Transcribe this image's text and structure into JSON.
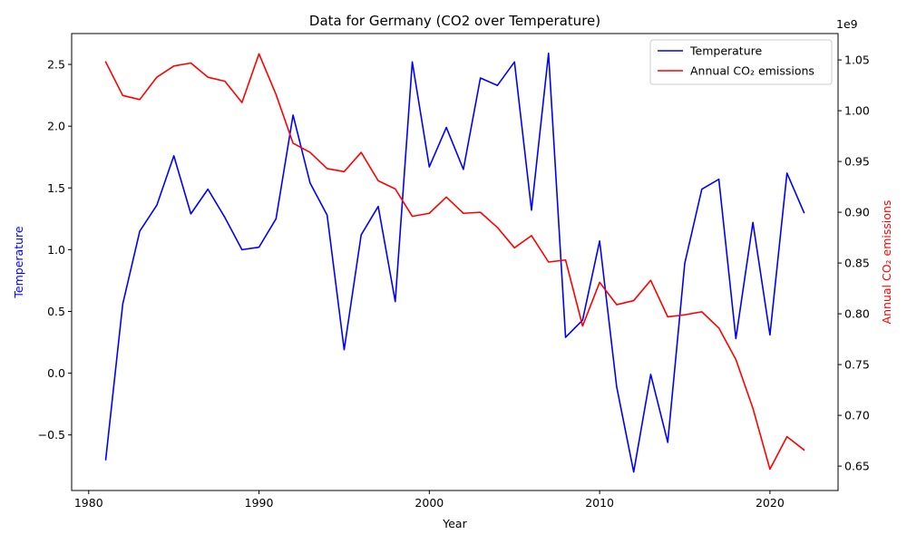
{
  "chart_data": {
    "type": "line",
    "title": "Data for Germany (CO2 over Temperature)",
    "xlabel": "Year",
    "ylabel_left": "Temperature",
    "ylabel_right": "Annual CO₂ emissions",
    "right_axis_offset_label": "1e9",
    "xlim": [
      1979,
      2024
    ],
    "ylim_left": [
      -0.95,
      2.75
    ],
    "ylim_right": [
      0.626,
      1.076
    ],
    "x_ticks": [
      1980,
      1990,
      2000,
      2010,
      2020
    ],
    "y_left_ticks": [
      -0.5,
      0.0,
      0.5,
      1.0,
      1.5,
      2.0,
      2.5
    ],
    "y_left_tick_labels": [
      "−0.5",
      "0.0",
      "0.5",
      "1.0",
      "1.5",
      "2.0",
      "2.5"
    ],
    "y_right_ticks": [
      0.65,
      0.7,
      0.75,
      0.8,
      0.85,
      0.9,
      0.95,
      1.0,
      1.05
    ],
    "y_right_tick_labels": [
      "0.65",
      "0.70",
      "0.75",
      "0.80",
      "0.85",
      "0.90",
      "0.95",
      "1.00",
      "1.05"
    ],
    "legend_position": "top-right",
    "grid": false,
    "x": [
      1981,
      1982,
      1983,
      1984,
      1985,
      1986,
      1987,
      1988,
      1989,
      1990,
      1991,
      1992,
      1993,
      1994,
      1995,
      1996,
      1997,
      1998,
      1999,
      2000,
      2001,
      2002,
      2003,
      2004,
      2005,
      2006,
      2007,
      2008,
      2009,
      2010,
      2011,
      2012,
      2013,
      2014,
      2015,
      2016,
      2017,
      2018,
      2019,
      2020,
      2021,
      2022
    ],
    "series": [
      {
        "name": "Temperature",
        "axis": "left",
        "color": "#0000ff",
        "values": [
          -0.7,
          0.56,
          1.15,
          1.36,
          1.76,
          1.29,
          1.49,
          1.26,
          1.0,
          1.02,
          1.25,
          2.09,
          1.54,
          1.28,
          0.19,
          1.12,
          1.35,
          0.58,
          2.52,
          1.67,
          1.99,
          1.65,
          2.39,
          2.33,
          2.52,
          1.32,
          2.59,
          0.29,
          0.43,
          1.07,
          -0.11,
          -0.8,
          -0.01,
          -0.56,
          0.89,
          1.49,
          1.57,
          0.28,
          1.22,
          0.31,
          1.62,
          1.3
        ]
      },
      {
        "name": "Annual CO₂ emissions",
        "axis": "right",
        "color": "#ff0000",
        "values": [
          1.048,
          1.015,
          1.011,
          1.033,
          1.044,
          1.047,
          1.033,
          1.029,
          1.008,
          1.056,
          1.016,
          0.968,
          0.959,
          0.943,
          0.94,
          0.959,
          0.931,
          0.923,
          0.896,
          0.899,
          0.915,
          0.899,
          0.9,
          0.885,
          0.865,
          0.877,
          0.851,
          0.853,
          0.788,
          0.831,
          0.809,
          0.813,
          0.833,
          0.797,
          0.799,
          0.802,
          0.786,
          0.755,
          0.707,
          0.647,
          0.679,
          0.666
        ]
      }
    ]
  }
}
